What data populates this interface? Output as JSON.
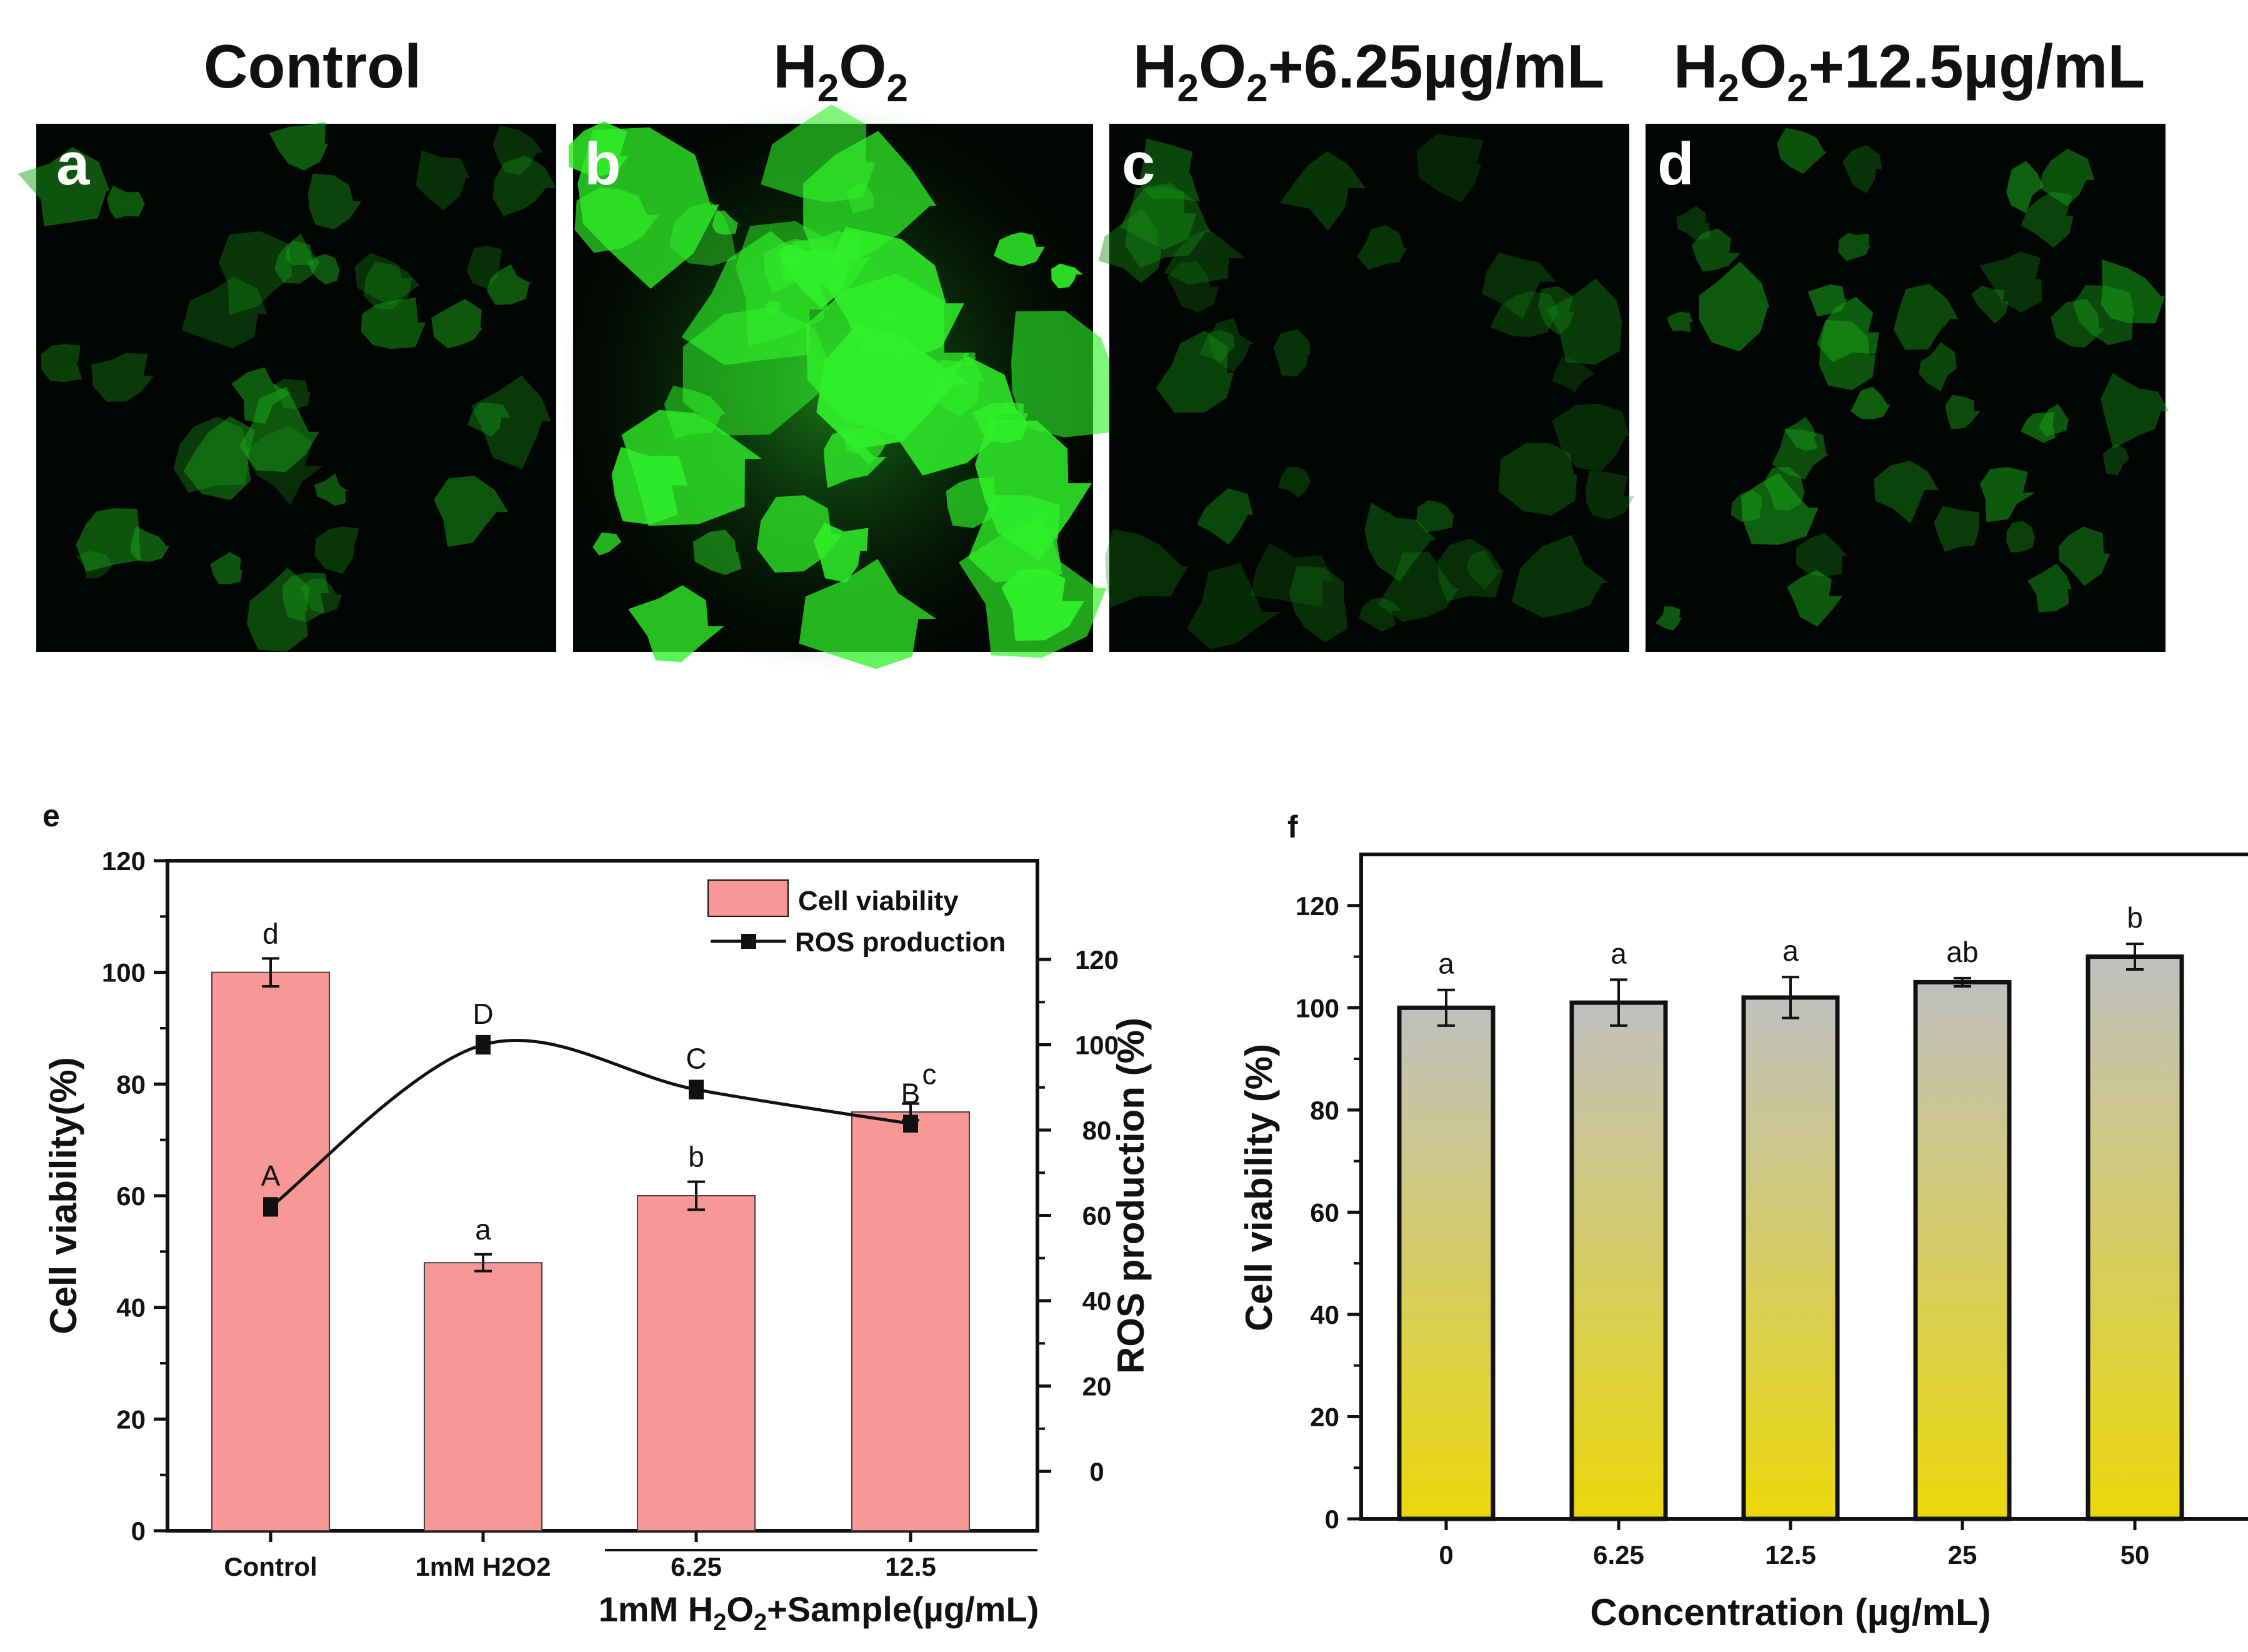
{
  "panel_titles": {
    "control": "Control",
    "h2o2": {
      "base": "H",
      "sub1": "2",
      "mid": "O",
      "sub2": "2"
    },
    "low": {
      "prefix": "H",
      "sub1": "2",
      "mid": "O",
      "sub2": "2",
      "suffix": "+6.25µg/mL"
    },
    "high": {
      "prefix": "H",
      "sub1": "2",
      "mid": "O",
      "sub2": "2",
      "suffix": "+12.5µg/mL"
    }
  },
  "panel_letters": [
    "a",
    "b",
    "c",
    "d",
    "e",
    "f"
  ],
  "micro_colors": {
    "background": "#020602",
    "glow": "#22d21e",
    "dim": "#1c8f1a"
  },
  "chart_data": [
    {
      "id": "e",
      "type": "bar",
      "categories": [
        "Control",
        "1mM H2O2",
        "6.25",
        "12.5"
      ],
      "group_label": {
        "prefix": "1mM H",
        "sub1": "2",
        "mid": "O",
        "sub2": "2",
        "suffix": "+Sample(µg/mL)"
      },
      "ylabel": "Cell viability(%)",
      "ylabel_right": "ROS production (%)",
      "ylim": [
        0,
        120
      ],
      "yticks": [
        0,
        20,
        40,
        60,
        80,
        100,
        120
      ],
      "ylim_right": [
        0,
        120
      ],
      "yticks_right": [
        0,
        20,
        40,
        60,
        80,
        100,
        120
      ],
      "legend_position": "top-right",
      "series": [
        {
          "name": "Cell viability",
          "kind": "bar",
          "color": "#f79796",
          "values": [
            100,
            48,
            60,
            75
          ],
          "errors": [
            2.5,
            1.5,
            2.5,
            1.5
          ],
          "letters": [
            "d",
            "a",
            "b",
            "c"
          ]
        },
        {
          "name": "ROS production",
          "kind": "line",
          "color": "#111111",
          "axis": "right",
          "values": [
            62,
            100,
            89.5,
            81.5
          ],
          "errors": [
            2,
            2,
            2,
            1.8
          ],
          "letters": [
            "A",
            "D",
            "C",
            "B"
          ]
        }
      ]
    },
    {
      "id": "f",
      "type": "bar",
      "categories": [
        "0",
        "6.25",
        "12.5",
        "25",
        "50"
      ],
      "xlabel": "Concentration (µg/mL)",
      "ylabel": "Cell viability (%)",
      "ylim": [
        0,
        130
      ],
      "yticks": [
        0,
        20,
        40,
        60,
        80,
        100,
        120
      ],
      "gradient": {
        "top": "#c0c0c0",
        "bottom": "#ebd80a"
      },
      "series": [
        {
          "kind": "bar",
          "values": [
            100,
            101,
            102,
            105,
            110
          ],
          "errors": [
            3.5,
            4.5,
            4,
            0.8,
            2.5
          ],
          "letters": [
            "a",
            "a",
            "a",
            "ab",
            "b"
          ]
        }
      ]
    }
  ]
}
